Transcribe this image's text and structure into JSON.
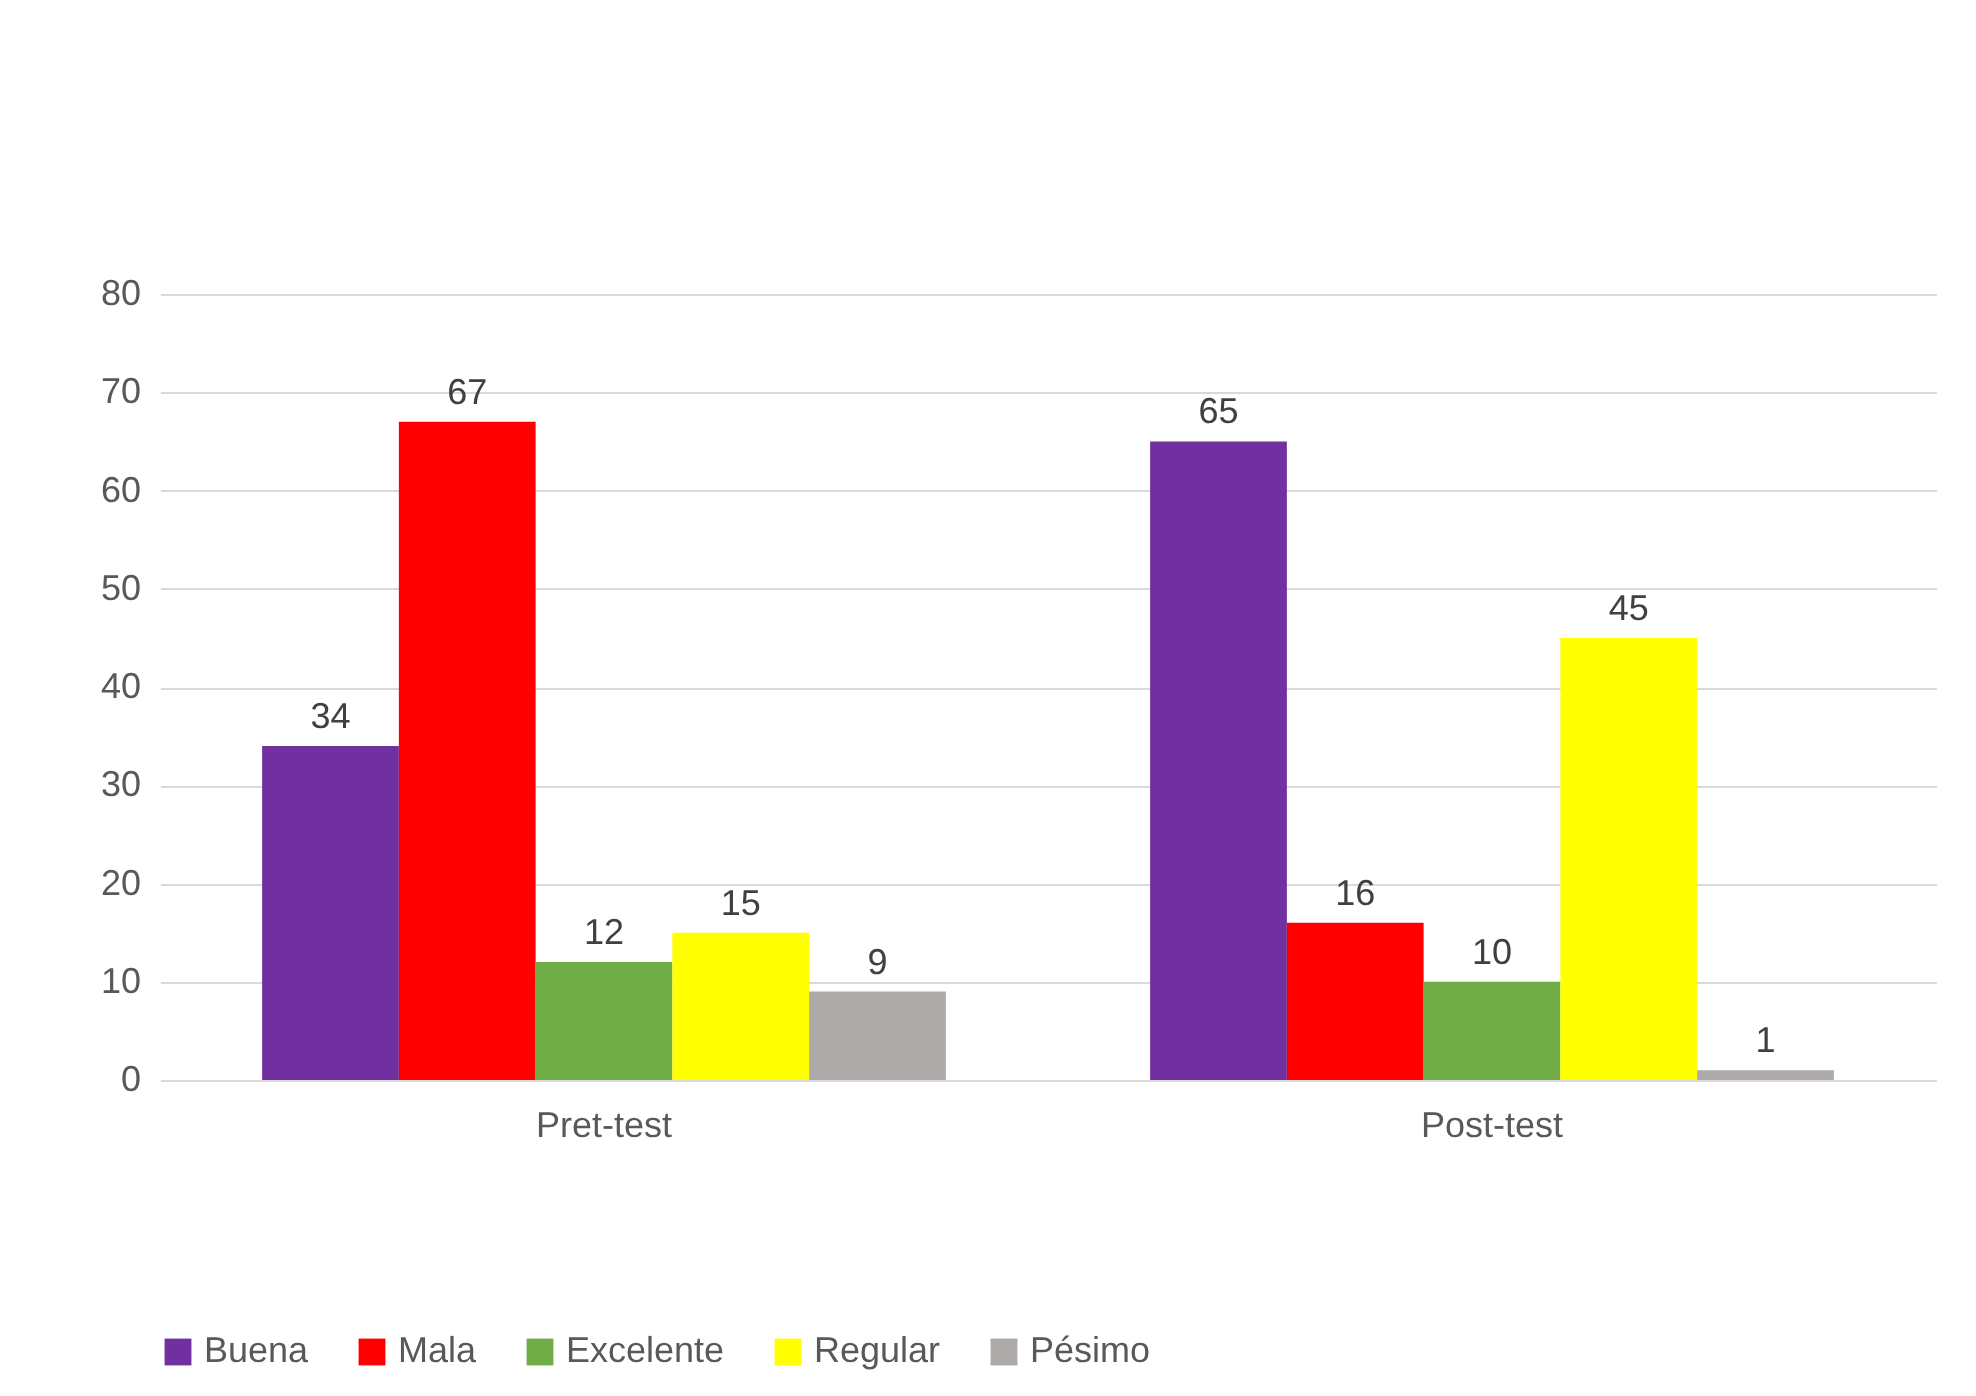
{
  "chart_data": {
    "type": "bar",
    "categories": [
      "Pret-test",
      "Post-test"
    ],
    "series": [
      {
        "name": "Buena",
        "color": "#7030a0",
        "values": [
          34,
          65
        ]
      },
      {
        "name": "Mala",
        "color": "#ff0000",
        "values": [
          67,
          16
        ]
      },
      {
        "name": "Excelente",
        "color": "#70ad47",
        "values": [
          12,
          10
        ]
      },
      {
        "name": "Regular",
        "color": "#ffff00",
        "values": [
          15,
          45
        ]
      },
      {
        "name": "Pésimo",
        "color": "#aeaaaa",
        "values": [
          9,
          1
        ]
      }
    ],
    "ylim": [
      0,
      80
    ],
    "yticks": [
      0,
      10,
      20,
      30,
      40,
      50,
      60,
      70,
      80
    ],
    "grid": "y",
    "legend": "bottom",
    "data_labels": true
  }
}
